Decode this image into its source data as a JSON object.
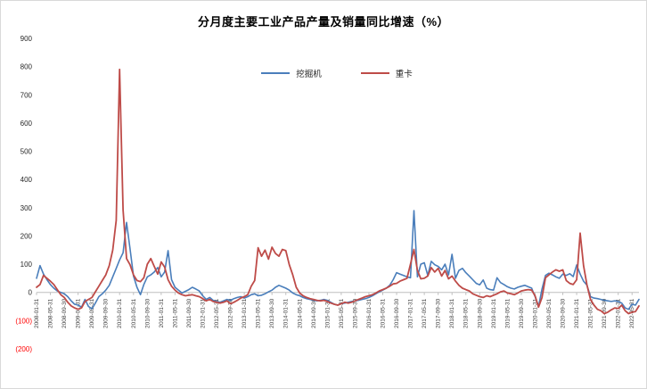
{
  "window": {
    "background": "#FFFFFF",
    "border_color": "#D9D9D9"
  },
  "chart_data": {
    "type": "line",
    "title": "分月度主要工业产品产量及销量同比增速（%）",
    "x_start": "2008-01",
    "x_freq": "monthly",
    "x_tick_step": 4,
    "x_tick_labels": [
      "2008-01-31",
      "2008-05-31",
      "2008-09-30",
      "2009-01-31",
      "2009-05-31",
      "2009-09-30",
      "2010-01-31",
      "2010-05-31",
      "2010-09-30",
      "2011-01-31",
      "2011-05-31",
      "2011-09-30",
      "2012-01-31",
      "2012-05-31",
      "2012-09-30",
      "2013-01-31",
      "2013-05-31",
      "2013-09-30",
      "2014-01-31",
      "2014-05-31",
      "2014-09-30",
      "2015-01-31",
      "2015-05-31",
      "2015-09-30",
      "2016-01-31",
      "2016-05-31",
      "2016-09-30",
      "2017-01-31",
      "2017-05-31",
      "2017-09-30",
      "2018-01-31",
      "2018-05-31",
      "2018-09-30",
      "2019-01-31",
      "2019-05-31",
      "2019-09-30",
      "2020-01-31",
      "2020-05-31",
      "2020-09-30",
      "2021-01-31",
      "2021-05-31",
      "2021-09-30",
      "2022-01-31",
      "2022-05-31"
    ],
    "y_ticks": [
      900,
      800,
      700,
      600,
      500,
      400,
      300,
      200,
      100,
      0,
      -100,
      -200
    ],
    "y_tick_labels": [
      "900",
      "800",
      "700",
      "600",
      "500",
      "400",
      "300",
      "200",
      "100",
      "0",
      "(100)",
      "(200)"
    ],
    "ylim": [
      -200,
      900
    ],
    "grid": false,
    "legend_position": "top-center",
    "negative_tick_color": "#FF0000",
    "axis_color": "#BFBFBF",
    "label_color": "#404040",
    "tick_text_color": "#262626",
    "series": [
      {
        "name": "挖掘机",
        "color": "#4A7EBB",
        "values": [
          50,
          95,
          65,
          45,
          28,
          15,
          5,
          0,
          -5,
          -15,
          -30,
          -42,
          -45,
          -52,
          -25,
          -50,
          -58,
          -38,
          -15,
          -5,
          8,
          25,
          55,
          85,
          115,
          140,
          248,
          155,
          58,
          18,
          -8,
          28,
          55,
          62,
          72,
          88,
          55,
          72,
          148,
          45,
          18,
          8,
          -2,
          4,
          10,
          18,
          12,
          5,
          -12,
          -25,
          -18,
          -28,
          -32,
          -35,
          -30,
          -25,
          -28,
          -22,
          -18,
          -15,
          -20,
          -15,
          -8,
          -5,
          -12,
          -10,
          -5,
          2,
          8,
          18,
          25,
          20,
          15,
          8,
          -2,
          -8,
          -12,
          -18,
          -22,
          -25,
          -28,
          -30,
          -28,
          -25,
          -28,
          -35,
          -42,
          -45,
          -40,
          -38,
          -35,
          -32,
          -30,
          -28,
          -25,
          -22,
          -18,
          -12,
          -5,
          2,
          8,
          15,
          25,
          45,
          70,
          65,
          60,
          55,
          52,
          290,
          55,
          100,
          105,
          60,
          110,
          98,
          92,
          80,
          100,
          62,
          135,
          50,
          78,
          85,
          70,
          58,
          45,
          32,
          27,
          44,
          15,
          10,
          8,
          52,
          35,
          28,
          20,
          15,
          12,
          18,
          22,
          25,
          20,
          15,
          -15,
          -50,
          12,
          60,
          68,
          62,
          55,
          50,
          65,
          60,
          66,
          56,
          97,
          65,
          40,
          25,
          -15,
          -20,
          -22,
          -25,
          -28,
          -30,
          -32,
          -30,
          -32,
          -38,
          -55,
          -60,
          -42,
          -45,
          -25
        ]
      },
      {
        "name": "重卡",
        "color": "#BE4B48",
        "values": [
          18,
          28,
          60,
          50,
          40,
          28,
          10,
          -8,
          -18,
          -35,
          -48,
          -55,
          -60,
          -55,
          -32,
          -25,
          -18,
          2,
          22,
          42,
          62,
          95,
          150,
          255,
          790,
          292,
          120,
          98,
          62,
          42,
          38,
          52,
          100,
          120,
          92,
          65,
          108,
          90,
          45,
          22,
          8,
          -2,
          -8,
          -12,
          -10,
          -8,
          -12,
          -15,
          -22,
          -30,
          -25,
          -32,
          -35,
          -38,
          -35,
          -30,
          -40,
          -35,
          -28,
          -20,
          -15,
          -8,
          22,
          42,
          158,
          128,
          150,
          118,
          160,
          138,
          128,
          152,
          148,
          98,
          62,
          18,
          -2,
          -12,
          -18,
          -22,
          -25,
          -28,
          -30,
          -28,
          -32,
          -38,
          -42,
          -45,
          -40,
          -35,
          -38,
          -35,
          -30,
          -25,
          -20,
          -15,
          -12,
          -8,
          -2,
          5,
          10,
          15,
          22,
          30,
          32,
          40,
          45,
          50,
          100,
          152,
          78,
          48,
          50,
          58,
          88,
          72,
          85,
          58,
          78,
          48,
          58,
          40,
          25,
          15,
          10,
          5,
          -5,
          -10,
          -15,
          -18,
          -12,
          -15,
          -10,
          -5,
          2,
          5,
          -2,
          -5,
          -8,
          -2,
          5,
          8,
          10,
          8,
          -12,
          -52,
          -18,
          52,
          62,
          72,
          80,
          75,
          80,
          42,
          32,
          28,
          45,
          210,
          95,
          25,
          -25,
          -45,
          -60,
          -65,
          -75,
          -70,
          -62,
          -55,
          -57,
          -45,
          -65,
          -75,
          -70,
          -68,
          -48
        ]
      }
    ]
  }
}
